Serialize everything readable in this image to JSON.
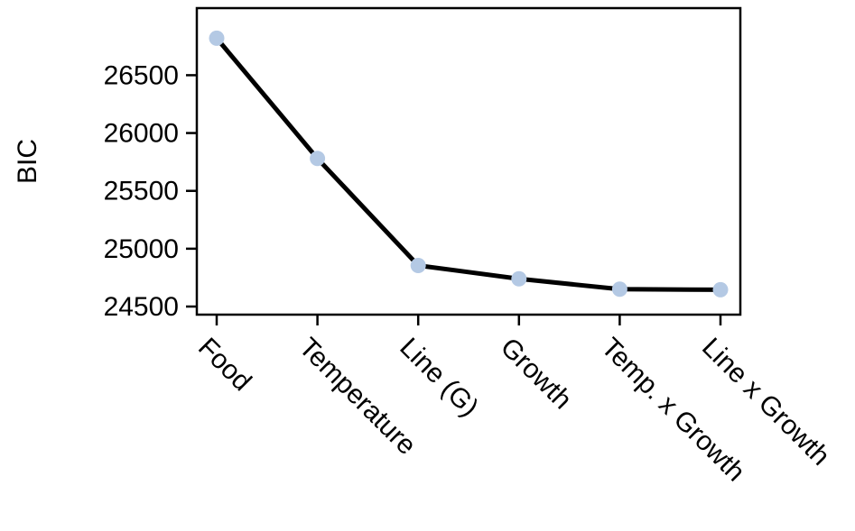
{
  "chart_data": {
    "type": "line",
    "title": "",
    "xlabel": "",
    "ylabel": "BIC",
    "categories": [
      "Food",
      "Temperature",
      "Line (G)",
      "Growth",
      "Temp. x Growth",
      "Line x Growth"
    ],
    "series": [
      {
        "values": [
          26820,
          25780,
          24855,
          24740,
          24650,
          24645
        ],
        "line_color": "#000000",
        "marker_color": "#b4c9e4"
      }
    ],
    "y_ticks": [
      "24500",
      "25000",
      "25500",
      "26000",
      "26500"
    ],
    "ylim": [
      24430,
      27080
    ],
    "grid": false,
    "legend": "none"
  }
}
